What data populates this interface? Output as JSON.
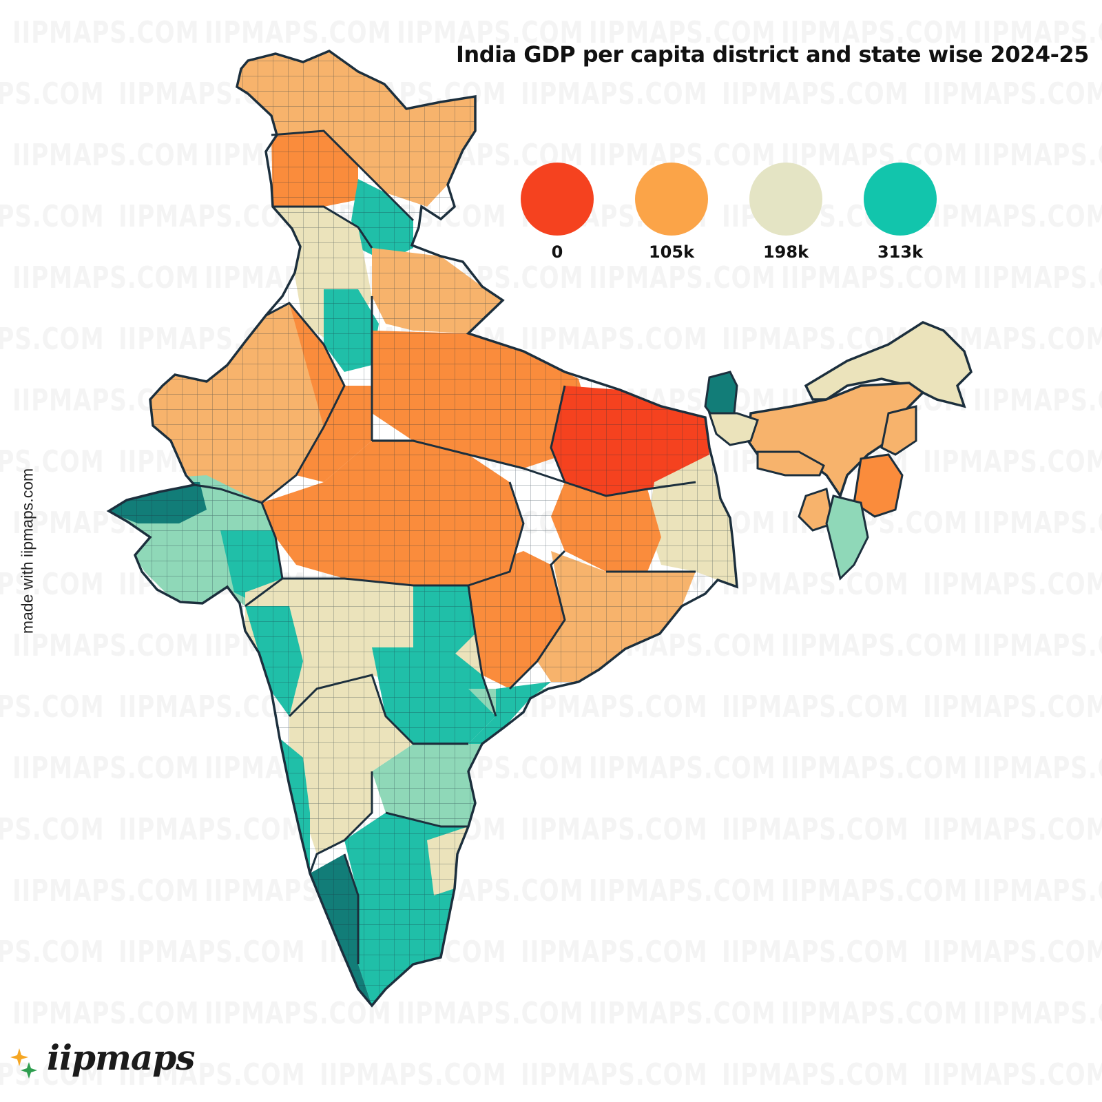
{
  "title": "India GDP per capita district and state wise 2024-25",
  "watermark_text": "IIPMAPS.COM",
  "credit": "made with iipmaps.com",
  "logo": {
    "text": "iipmaps"
  },
  "legend": {
    "items": [
      {
        "label": "0",
        "color": "#f5421f"
      },
      {
        "label": "105k",
        "color": "#fba448"
      },
      {
        "label": "198k",
        "color": "#e4e4c4"
      },
      {
        "label": "313k",
        "color": "#12c5ac"
      }
    ]
  },
  "palette": {
    "red": "#f5421f",
    "orange": "#fa8c3c",
    "light_orange": "#f7b36c",
    "cream": "#ebe3bb",
    "pale_green": "#8fd8b8",
    "teal": "#20bfa8",
    "dark_teal": "#127d78",
    "border": "#1c2f3d"
  }
}
